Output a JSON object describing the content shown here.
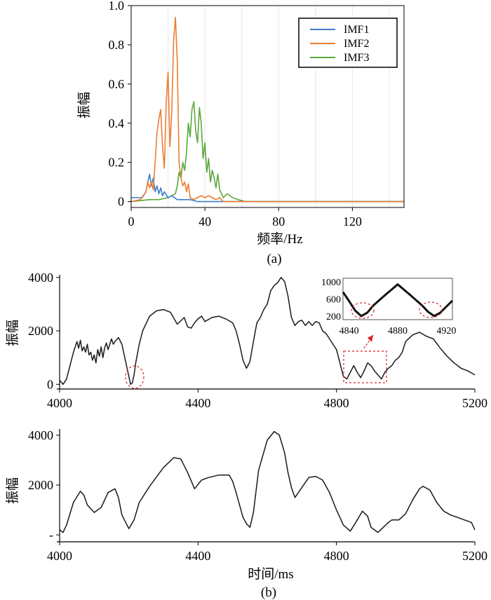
{
  "colors": {
    "IMF1": "#3d7fc9",
    "IMF2": "#ed7d31",
    "IMF3": "#5aa83a",
    "trace": "#1a1a1a",
    "highlight": "#e02020"
  },
  "panel_a_caption": "(a)",
  "panel_b_caption": "(b)",
  "chart_data": [
    {
      "type": "line",
      "panel": "(a)",
      "xlabel": "频率/Hz",
      "ylabel": "振幅",
      "xlim": [
        0,
        148
      ],
      "ylim": [
        -0.03,
        1.0
      ],
      "xticks": [
        0,
        40,
        80,
        120
      ],
      "yticks": [
        0,
        0.2,
        0.4,
        0.6,
        0.8,
        1.0
      ],
      "ytick_labels": [
        "0",
        "0.2",
        "0.4",
        "0.6",
        "0.8",
        "1.0"
      ],
      "legend_position": "top-right",
      "series": [
        {
          "name": "IMF1",
          "x": [
            0,
            6,
            8,
            9,
            10,
            11,
            12,
            13,
            14,
            15,
            16,
            17,
            18,
            20,
            22,
            25,
            28,
            32,
            36,
            40,
            45,
            50,
            148
          ],
          "y": [
            0.02,
            0.02,
            0.05,
            0.1,
            0.14,
            0.08,
            0.12,
            0.05,
            0.08,
            0.04,
            0.07,
            0.03,
            0.05,
            0.02,
            0.03,
            0.01,
            0.01,
            0.01,
            0.0,
            0.0,
            0.0,
            0.0,
            0.0
          ]
        },
        {
          "name": "IMF2",
          "x": [
            0,
            5,
            8,
            9,
            10,
            11,
            12,
            13,
            14,
            15,
            16,
            17,
            18,
            19,
            20,
            21,
            22,
            23,
            24,
            25,
            26,
            27,
            28,
            29,
            30,
            31,
            32,
            34,
            36,
            38,
            40,
            42,
            44,
            46,
            48,
            50,
            148
          ],
          "y": [
            0.0,
            0.01,
            0.05,
            0.1,
            0.07,
            0.1,
            0.06,
            0.2,
            0.35,
            0.42,
            0.47,
            0.28,
            0.17,
            0.5,
            0.66,
            0.28,
            0.45,
            0.82,
            0.94,
            0.72,
            0.2,
            0.12,
            0.08,
            0.1,
            0.05,
            0.09,
            0.02,
            0.01,
            0.02,
            0.03,
            0.02,
            0.03,
            0.02,
            0.01,
            0.02,
            0.0,
            0.0
          ]
        },
        {
          "name": "IMF3",
          "x": [
            0,
            10,
            15,
            20,
            22,
            24,
            25,
            26,
            27,
            28,
            29,
            30,
            31,
            32,
            33,
            34,
            35,
            36,
            37,
            38,
            39,
            40,
            41,
            42,
            43,
            44,
            45,
            46,
            47,
            48,
            49,
            50,
            52,
            55,
            58,
            62,
            148
          ],
          "y": [
            0.0,
            0.01,
            0.01,
            0.02,
            0.03,
            0.04,
            0.08,
            0.15,
            0.12,
            0.2,
            0.16,
            0.25,
            0.4,
            0.33,
            0.47,
            0.51,
            0.36,
            0.3,
            0.48,
            0.4,
            0.22,
            0.3,
            0.15,
            0.22,
            0.1,
            0.16,
            0.12,
            0.07,
            0.14,
            0.06,
            0.04,
            0.02,
            0.04,
            0.02,
            0.01,
            0.0,
            0.0
          ]
        }
      ]
    },
    {
      "type": "line",
      "panel": "(b) top",
      "ylabel": "振幅",
      "xlim": [
        4000,
        5200
      ],
      "ylim": [
        -150,
        4100
      ],
      "xticks": [
        4000,
        4400,
        4800,
        5200
      ],
      "yticks": [
        0,
        2000,
        4000
      ],
      "x": [
        4000,
        4010,
        4020,
        4030,
        4040,
        4050,
        4055,
        4060,
        4065,
        4070,
        4075,
        4080,
        4085,
        4090,
        4095,
        4100,
        4105,
        4110,
        4115,
        4120,
        4125,
        4130,
        4135,
        4140,
        4145,
        4150,
        4155,
        4160,
        4170,
        4180,
        4190,
        4200,
        4205,
        4210,
        4215,
        4220,
        4230,
        4240,
        4260,
        4280,
        4300,
        4320,
        4340,
        4360,
        4370,
        4380,
        4390,
        4400,
        4410,
        4420,
        4440,
        4460,
        4480,
        4500,
        4510,
        4520,
        4530,
        4540,
        4550,
        4560,
        4570,
        4580,
        4590,
        4600,
        4610,
        4620,
        4630,
        4640,
        4650,
        4660,
        4670,
        4680,
        4690,
        4700,
        4710,
        4720,
        4730,
        4740,
        4750,
        4760,
        4770,
        4780,
        4790,
        4800,
        4810,
        4820,
        4830,
        4840,
        4850,
        4860,
        4870,
        4880,
        4890,
        4900,
        4910,
        4920,
        4930,
        4940,
        4950,
        4960,
        4970,
        4980,
        4990,
        5000,
        5020,
        5040,
        5060,
        5080,
        5100,
        5120,
        5140,
        5160,
        5180,
        5200
      ],
      "y": [
        150,
        0,
        200,
        700,
        1200,
        1600,
        1350,
        1650,
        1250,
        1400,
        1200,
        1500,
        1100,
        1200,
        900,
        1100,
        800,
        1300,
        1050,
        1400,
        1000,
        1350,
        1550,
        1300,
        1500,
        1700,
        1500,
        1600,
        1750,
        1500,
        900,
        300,
        0,
        50,
        350,
        800,
        1500,
        2000,
        2550,
        2750,
        2800,
        2700,
        2250,
        2500,
        2150,
        2100,
        2300,
        2450,
        2550,
        2350,
        2500,
        2550,
        2450,
        2300,
        2000,
        1500,
        900,
        600,
        850,
        1600,
        2300,
        2500,
        2800,
        3000,
        3500,
        3700,
        3800,
        4000,
        3850,
        3300,
        2500,
        2200,
        2350,
        2400,
        2200,
        2350,
        2200,
        2350,
        2300,
        2000,
        1900,
        1700,
        1500,
        1300,
        800,
        300,
        200,
        450,
        700,
        450,
        250,
        500,
        800,
        700,
        500,
        350,
        200,
        450,
        600,
        700,
        900,
        1000,
        1200,
        1600,
        1850,
        1950,
        1800,
        1700,
        1350,
        1050,
        800,
        600,
        500,
        350
      ]
    },
    {
      "type": "line",
      "panel": "(b) inset",
      "xlim": [
        4835,
        4925
      ],
      "ylim": [
        150,
        1050
      ],
      "xticks": [
        4840,
        4880,
        4920
      ],
      "yticks": [
        200,
        600,
        1000
      ],
      "x": [
        4835,
        4840,
        4845,
        4850,
        4855,
        4860,
        4870,
        4875,
        4880,
        4885,
        4890,
        4900,
        4905,
        4910,
        4915,
        4920,
        4925
      ],
      "y": [
        760,
        550,
        330,
        200,
        280,
        450,
        700,
        820,
        940,
        820,
        700,
        450,
        300,
        200,
        280,
        420,
        560
      ]
    },
    {
      "type": "line",
      "panel": "(b) bottom",
      "xlabel": "时间/ms",
      "ylabel": "振幅",
      "xlim": [
        4000,
        5200
      ],
      "ylim": [
        -250,
        4250
      ],
      "xticks": [
        4000,
        4400,
        4800,
        5200
      ],
      "yticks": [
        0,
        2000,
        4000
      ],
      "ytick_labels": [
        "-",
        "2000",
        "4000"
      ],
      "x": [
        4000,
        4010,
        4020,
        4040,
        4060,
        4070,
        4080,
        4100,
        4120,
        4140,
        4160,
        4170,
        4180,
        4200,
        4215,
        4230,
        4260,
        4300,
        4330,
        4350,
        4370,
        4390,
        4410,
        4430,
        4460,
        4490,
        4500,
        4510,
        4520,
        4530,
        4540,
        4550,
        4560,
        4575,
        4600,
        4620,
        4635,
        4650,
        4660,
        4670,
        4680,
        4700,
        4720,
        4740,
        4760,
        4780,
        4800,
        4820,
        4840,
        4860,
        4875,
        4890,
        4900,
        4920,
        4935,
        4950,
        4960,
        4980,
        5000,
        5020,
        5040,
        5050,
        5070,
        5090,
        5110,
        5130,
        5150,
        5170,
        5190,
        5200
      ],
      "y": [
        200,
        100,
        400,
        1300,
        1750,
        1600,
        1200,
        900,
        1100,
        1700,
        1850,
        1500,
        800,
        250,
        600,
        1300,
        1950,
        2700,
        3100,
        3050,
        2500,
        1850,
        2200,
        2300,
        2400,
        2400,
        2150,
        1700,
        1200,
        700,
        450,
        300,
        900,
        2600,
        3800,
        4150,
        4000,
        3300,
        2500,
        1900,
        1500,
        1900,
        2300,
        2350,
        2200,
        1700,
        1000,
        400,
        150,
        600,
        950,
        750,
        300,
        100,
        300,
        500,
        600,
        600,
        850,
        1400,
        1850,
        1950,
        1800,
        1300,
        950,
        800,
        700,
        600,
        500,
        200
      ]
    }
  ]
}
